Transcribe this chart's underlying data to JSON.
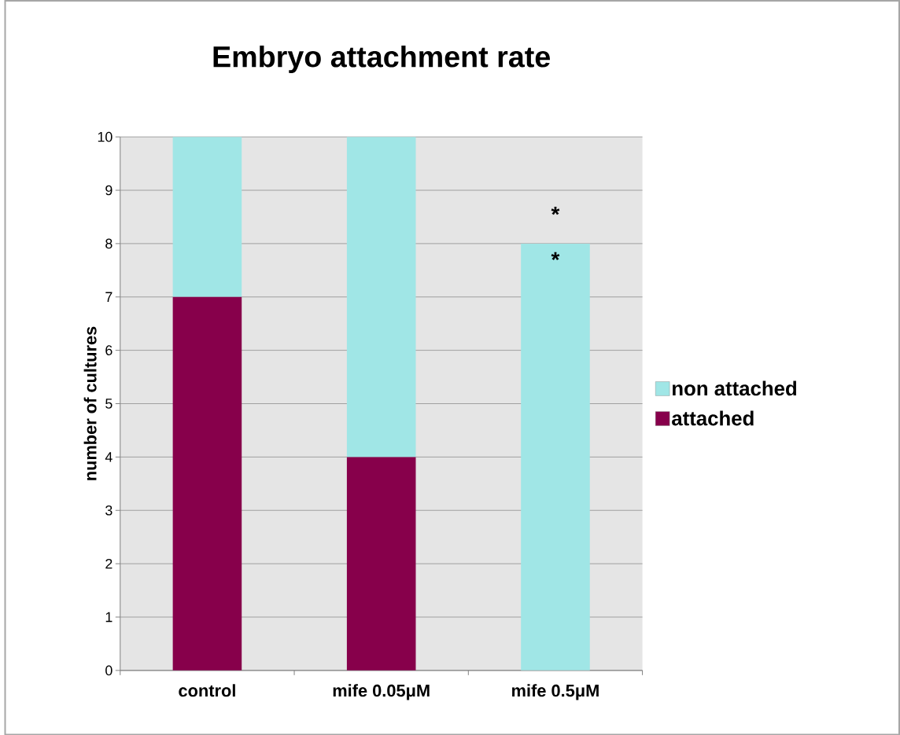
{
  "chart_data": {
    "type": "bar",
    "stacked": true,
    "title": "Embryo attachment rate",
    "ylabel": "number of cultures",
    "categories": [
      "control",
      "mife 0.05μM",
      "mife 0.5μM"
    ],
    "series": [
      {
        "name": "attached",
        "color": "#87004b",
        "values": [
          7,
          4,
          0
        ]
      },
      {
        "name": "non attached",
        "color": "#a0e6e6",
        "values": [
          3,
          6,
          8
        ]
      }
    ],
    "ylim": [
      0,
      10
    ],
    "yticks": [
      0,
      1,
      2,
      3,
      4,
      5,
      6,
      7,
      8,
      9,
      10
    ],
    "grid": "y",
    "legend": "right",
    "annotations": [
      "*",
      "*"
    ]
  }
}
